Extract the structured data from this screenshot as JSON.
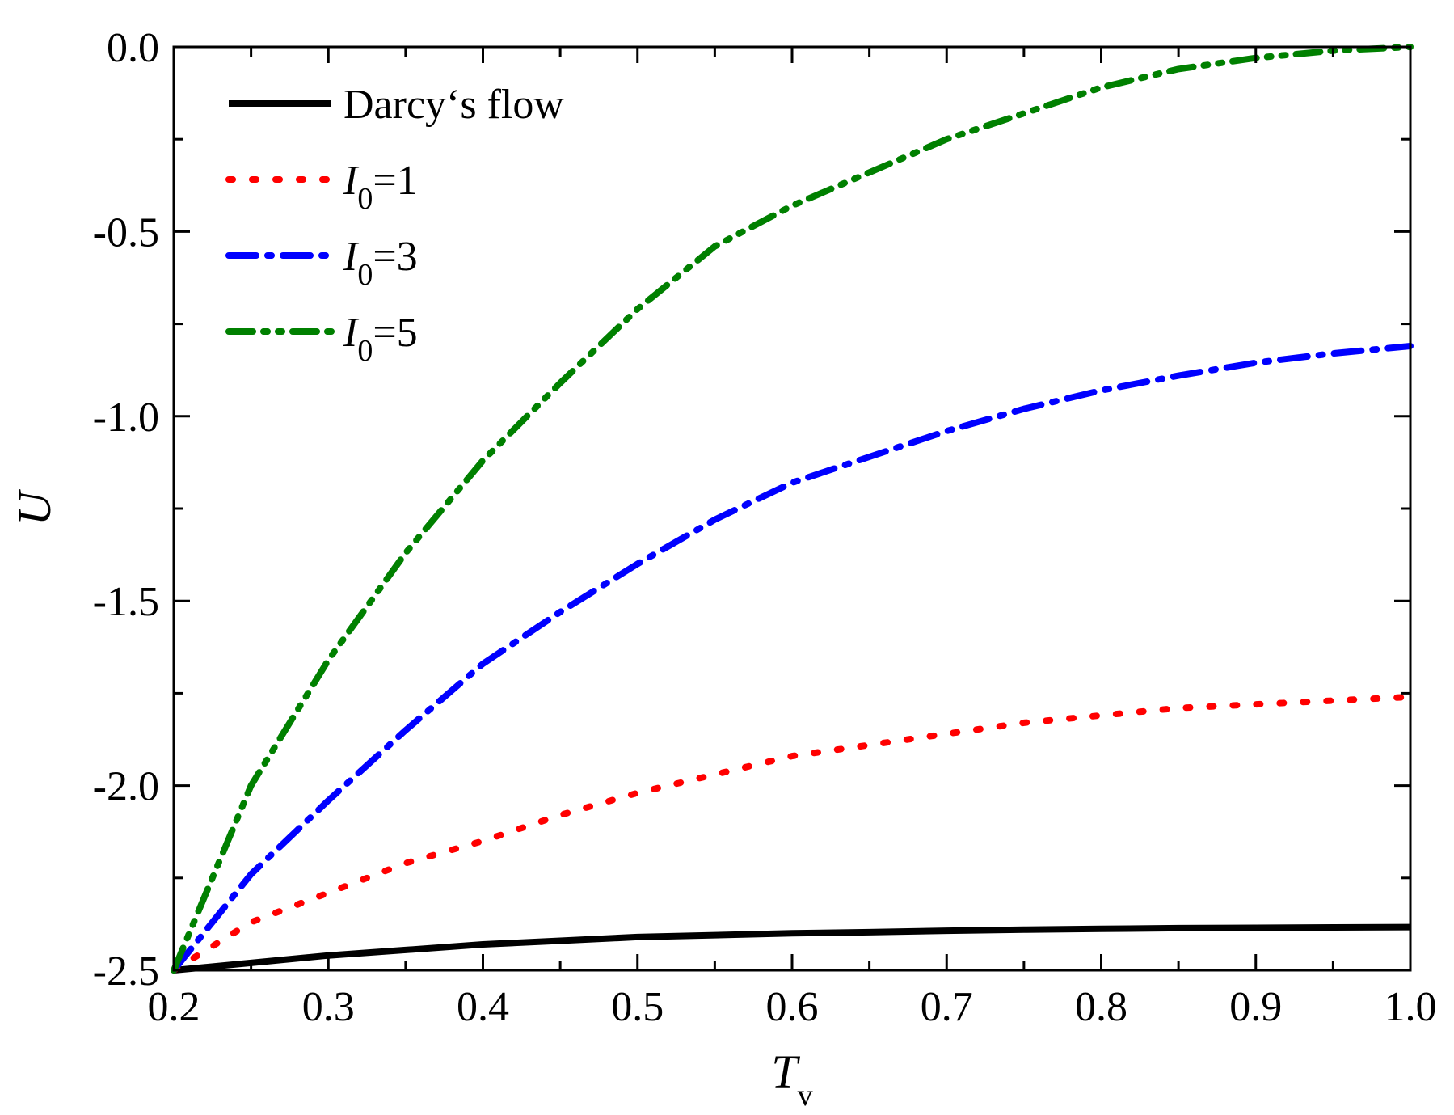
{
  "chart_data": {
    "type": "line",
    "title": "",
    "xlabel": {
      "main": "T",
      "sub": "v"
    },
    "ylabel": "U",
    "xlim": [
      0.2,
      1.0
    ],
    "ylim": [
      -2.5,
      0.0
    ],
    "xticks": [
      "0.2",
      "0.3",
      "0.4",
      "0.5",
      "0.6",
      "0.7",
      "0.8",
      "0.9",
      "1.0"
    ],
    "yticks": [
      "0.0",
      "-0.5",
      "-1.0",
      "-1.5",
      "-2.0",
      "-2.5"
    ],
    "grid": false,
    "legend_position": "top-left",
    "x": [
      0.2,
      0.25,
      0.3,
      0.35,
      0.4,
      0.45,
      0.5,
      0.55,
      0.6,
      0.65,
      0.7,
      0.75,
      0.8,
      0.85,
      0.9,
      0.95,
      1.0
    ],
    "series": [
      {
        "name": "Darcy‘s flow",
        "color": "#000000",
        "style": "solid",
        "values": [
          -2.5,
          -2.48,
          -2.46,
          -2.445,
          -2.43,
          -2.42,
          -2.41,
          -2.405,
          -2.4,
          -2.397,
          -2.393,
          -2.39,
          -2.388,
          -2.386,
          -2.385,
          -2.384,
          -2.383
        ]
      },
      {
        "name_main": "I",
        "name_sub": "0",
        "name_rest": "=1",
        "color": "#ff0000",
        "style": "dot",
        "values": [
          -2.5,
          -2.37,
          -2.29,
          -2.21,
          -2.15,
          -2.08,
          -2.02,
          -1.97,
          -1.92,
          -1.89,
          -1.86,
          -1.83,
          -1.81,
          -1.79,
          -1.78,
          -1.77,
          -1.76
        ]
      },
      {
        "name_main": "I",
        "name_sub": "0",
        "name_rest": "=3",
        "color": "#0000ff",
        "style": "dashdot",
        "values": [
          -2.5,
          -2.24,
          -2.04,
          -1.85,
          -1.67,
          -1.53,
          -1.4,
          -1.28,
          -1.18,
          -1.11,
          -1.04,
          -0.98,
          -0.93,
          -0.89,
          -0.855,
          -0.83,
          -0.81
        ]
      },
      {
        "name_main": "I",
        "name_sub": "0",
        "name_rest": "=5",
        "color": "#008000",
        "style": "dashdotdot",
        "values": [
          -2.5,
          -2.0,
          -1.66,
          -1.37,
          -1.12,
          -0.91,
          -0.71,
          -0.54,
          -0.43,
          -0.34,
          -0.25,
          -0.18,
          -0.11,
          -0.06,
          -0.03,
          -0.01,
          0.0
        ]
      }
    ]
  }
}
